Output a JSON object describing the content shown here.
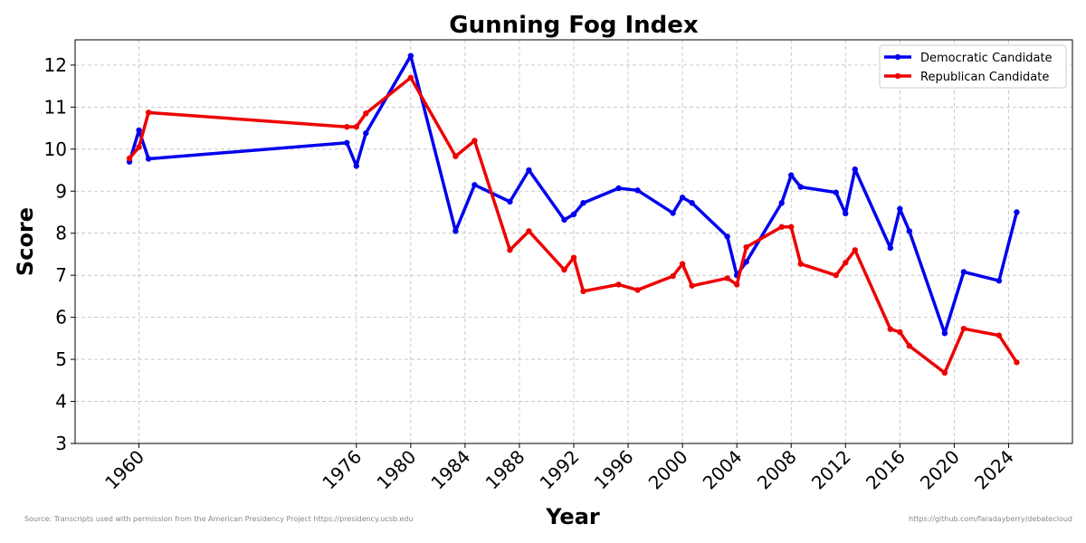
{
  "chart_data": {
    "type": "line",
    "title": "Gunning Fog Index",
    "xlabel": "Year",
    "ylabel": "Score",
    "xlim": [
      1955.3,
      2028.7
    ],
    "ylim": [
      3,
      12.6
    ],
    "xticks": [
      1960,
      1976,
      1980,
      1984,
      1988,
      1992,
      1996,
      2000,
      2004,
      2008,
      2012,
      2016,
      2020,
      2024
    ],
    "yticks": [
      3,
      4,
      5,
      6,
      7,
      8,
      9,
      10,
      11,
      12
    ],
    "grid": true,
    "legend_position": "top-right",
    "series": [
      {
        "name": "Democratic Candidate",
        "color": "#0000ee",
        "points": [
          [
            1959.3,
            9.7
          ],
          [
            1960.0,
            10.45
          ],
          [
            1960.7,
            9.77
          ],
          [
            1975.3,
            10.15
          ],
          [
            1976.0,
            9.6
          ],
          [
            1976.7,
            10.38
          ],
          [
            1980.0,
            12.22
          ],
          [
            1983.3,
            8.05
          ],
          [
            1984.7,
            9.15
          ],
          [
            1987.3,
            8.75
          ],
          [
            1988.7,
            9.5
          ],
          [
            1991.3,
            8.32
          ],
          [
            1992.0,
            8.45
          ],
          [
            1992.7,
            8.72
          ],
          [
            1995.3,
            9.07
          ],
          [
            1996.7,
            9.02
          ],
          [
            1999.3,
            8.48
          ],
          [
            2000.0,
            8.85
          ],
          [
            2000.7,
            8.72
          ],
          [
            2003.3,
            7.92
          ],
          [
            2004.0,
            7.0
          ],
          [
            2004.7,
            7.32
          ],
          [
            2007.3,
            8.72
          ],
          [
            2008.0,
            9.38
          ],
          [
            2008.7,
            9.1
          ],
          [
            2011.3,
            8.97
          ],
          [
            2012.0,
            8.47
          ],
          [
            2012.7,
            9.52
          ],
          [
            2015.3,
            7.65
          ],
          [
            2016.0,
            8.58
          ],
          [
            2016.7,
            8.05
          ],
          [
            2019.3,
            5.62
          ],
          [
            2020.7,
            7.08
          ],
          [
            2023.3,
            6.87
          ],
          [
            2024.6,
            8.5
          ]
        ]
      },
      {
        "name": "Republican Candidate",
        "color": "#ee0000",
        "points": [
          [
            1959.3,
            9.78
          ],
          [
            1960.0,
            10.05
          ],
          [
            1960.7,
            10.87
          ],
          [
            1975.3,
            10.53
          ],
          [
            1976.0,
            10.53
          ],
          [
            1976.7,
            10.85
          ],
          [
            1980.0,
            11.7
          ],
          [
            1983.3,
            9.83
          ],
          [
            1984.7,
            10.2
          ],
          [
            1987.3,
            7.6
          ],
          [
            1988.7,
            8.05
          ],
          [
            1991.3,
            7.13
          ],
          [
            1992.0,
            7.42
          ],
          [
            1992.7,
            6.62
          ],
          [
            1995.3,
            6.78
          ],
          [
            1996.7,
            6.65
          ],
          [
            1999.3,
            6.98
          ],
          [
            2000.0,
            7.27
          ],
          [
            2000.7,
            6.75
          ],
          [
            2003.3,
            6.93
          ],
          [
            2004.0,
            6.78
          ],
          [
            2004.7,
            7.67
          ],
          [
            2007.3,
            8.15
          ],
          [
            2008.0,
            8.15
          ],
          [
            2008.7,
            7.27
          ],
          [
            2011.3,
            7.0
          ],
          [
            2012.0,
            7.3
          ],
          [
            2012.7,
            7.6
          ],
          [
            2015.3,
            5.72
          ],
          [
            2016.0,
            5.65
          ],
          [
            2016.7,
            5.32
          ],
          [
            2019.3,
            4.68
          ],
          [
            2020.7,
            5.73
          ],
          [
            2023.3,
            5.57
          ],
          [
            2024.6,
            4.93
          ]
        ]
      }
    ]
  },
  "footer": {
    "source": "Source: Transcripts used with permission from the American Presidency Project https://presidency.ucsb.edu",
    "credit": "https://github.com/faradayberry/debatecloud"
  }
}
